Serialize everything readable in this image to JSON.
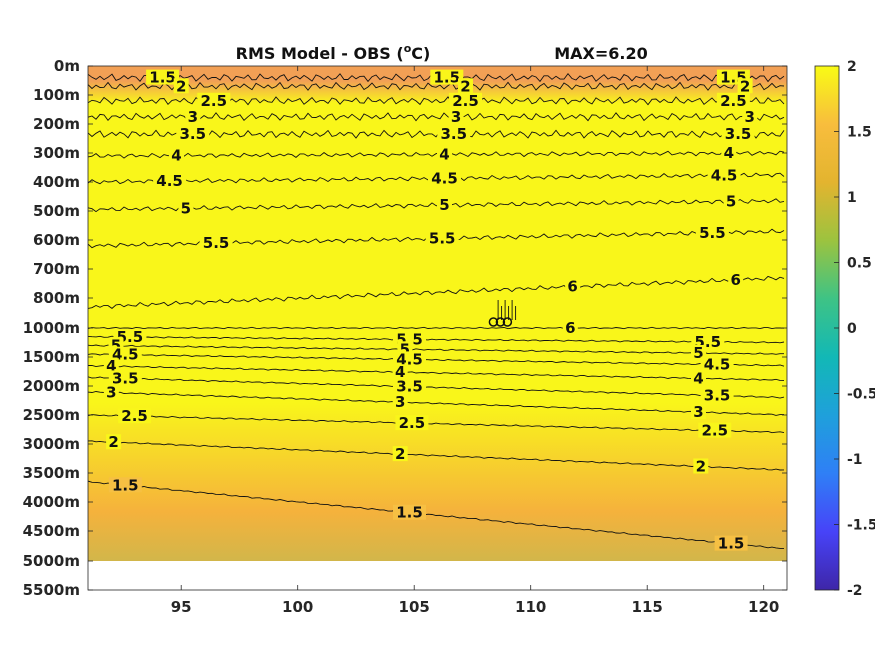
{
  "chart_data": {
    "type": "heatmap",
    "subtype": "filled-contour depth section",
    "title_left": "RMS Model - OBS (",
    "title_unit_super": "o",
    "title_unit_rest": "C)",
    "title_right": "MAX=6.20",
    "x": {
      "range": [
        91,
        121
      ],
      "ticks": [
        95,
        100,
        105,
        110,
        115,
        120
      ],
      "tick_labels": [
        "95",
        "100",
        "105",
        "110",
        "115",
        "120"
      ]
    },
    "y": {
      "reversed": true,
      "scale": "piecewise depth",
      "ticks": [
        0,
        100,
        200,
        300,
        400,
        500,
        600,
        700,
        800,
        1000,
        1500,
        2000,
        2500,
        3000,
        3500,
        4000,
        4500,
        5000,
        5500
      ],
      "tick_labels": [
        "0m",
        "100m",
        "200m",
        "300m",
        "400m",
        "500m",
        "600m",
        "700m",
        "800m",
        "1000m",
        "1500m",
        "2000m",
        "2500m",
        "3000m",
        "3500m",
        "4000m",
        "4500m",
        "5000m",
        "5500m"
      ],
      "data_bottom": 5000
    },
    "colorbar": {
      "range": [
        -2,
        2
      ],
      "ticks": [
        2,
        1.5,
        1,
        0.5,
        0,
        -0.5,
        -1,
        -1.5,
        -2
      ],
      "tick_labels": [
        "2",
        "1.5",
        "1",
        "0.5",
        "0",
        "-0.5",
        "-1",
        "-1.5",
        "-2"
      ],
      "colormap": "parula",
      "colors": [
        "#3e26a8",
        "#4743f8",
        "#2f7ff6",
        "#1fa0db",
        "#12b8b6",
        "#3ec385",
        "#9cc33f",
        "#e3b42f",
        "#f8bd3d",
        "#f9fb15"
      ]
    },
    "background": {
      "top_band_color": "#f2a055",
      "main_color": "#f9f61a",
      "deep_color": "#f5b23c",
      "bottom_color": "#d2b64a"
    },
    "contour_levels": [
      1.5,
      2,
      2.5,
      3,
      3.5,
      4,
      4.5,
      5,
      5.5,
      6
    ],
    "contours": [
      {
        "level": "1.5",
        "depth_left": 40,
        "depth_right": 40,
        "labels_x": [
          94.2,
          106.4,
          118.7
        ]
      },
      {
        "level": "2",
        "depth_left": 70,
        "depth_right": 70,
        "labels_x": [
          95.0,
          107.2,
          119.2
        ]
      },
      {
        "level": "2.5",
        "depth_left": 120,
        "depth_right": 120,
        "labels_x": [
          96.4,
          107.2,
          118.7
        ]
      },
      {
        "level": "3",
        "depth_left": 175,
        "depth_right": 175,
        "labels_x": [
          95.5,
          106.8,
          119.4
        ]
      },
      {
        "level": "3.5",
        "depth_left": 235,
        "depth_right": 235,
        "labels_x": [
          95.5,
          106.7,
          118.9
        ]
      },
      {
        "level": "4",
        "depth_left": 310,
        "depth_right": 300,
        "labels_x": [
          94.8,
          106.3,
          118.5
        ]
      },
      {
        "level": "4.5",
        "depth_left": 400,
        "depth_right": 375,
        "labels_x": [
          94.5,
          106.3,
          118.3
        ]
      },
      {
        "level": "5",
        "depth_left": 495,
        "depth_right": 465,
        "labels_x": [
          95.2,
          106.3,
          118.6
        ]
      },
      {
        "level": "5.5",
        "depth_left": 620,
        "depth_right": 570,
        "labels_x": [
          96.5,
          106.2,
          117.8
        ]
      },
      {
        "level": "6",
        "depth_left": 860,
        "depth_right": 730,
        "labels_x": [
          111.8,
          118.8
        ]
      },
      {
        "level": "6",
        "depth_left": 1000,
        "depth_right": 1000,
        "labels_x": [
          111.7
        ]
      },
      {
        "level": "5.5",
        "depth_left": 1150,
        "depth_right": 1250,
        "labels_x": [
          92.8,
          104.8,
          117.6
        ]
      },
      {
        "level": "5",
        "depth_left": 1300,
        "depth_right": 1450,
        "labels_x": [
          92.2,
          104.6,
          117.2
        ]
      },
      {
        "level": "4.5",
        "depth_left": 1450,
        "depth_right": 1650,
        "labels_x": [
          92.6,
          104.8,
          118.0
        ]
      },
      {
        "level": "4",
        "depth_left": 1650,
        "depth_right": 1900,
        "labels_x": [
          92.0,
          104.4,
          117.2
        ]
      },
      {
        "level": "3.5",
        "depth_left": 1850,
        "depth_right": 2200,
        "labels_x": [
          92.6,
          104.8,
          118.0
        ]
      },
      {
        "level": "3",
        "depth_left": 2100,
        "depth_right": 2500,
        "labels_x": [
          92.0,
          104.4,
          117.2
        ]
      },
      {
        "level": "2.5",
        "depth_left": 2500,
        "depth_right": 2800,
        "labels_x": [
          93.0,
          104.9,
          117.9
        ]
      },
      {
        "level": "2",
        "depth_left": 2950,
        "depth_right": 3450,
        "labels_x": [
          92.1,
          104.4,
          117.3
        ]
      },
      {
        "level": "1.5",
        "depth_left": 3650,
        "depth_right": 4800,
        "labels_x": [
          92.6,
          104.8,
          118.6
        ]
      }
    ]
  }
}
